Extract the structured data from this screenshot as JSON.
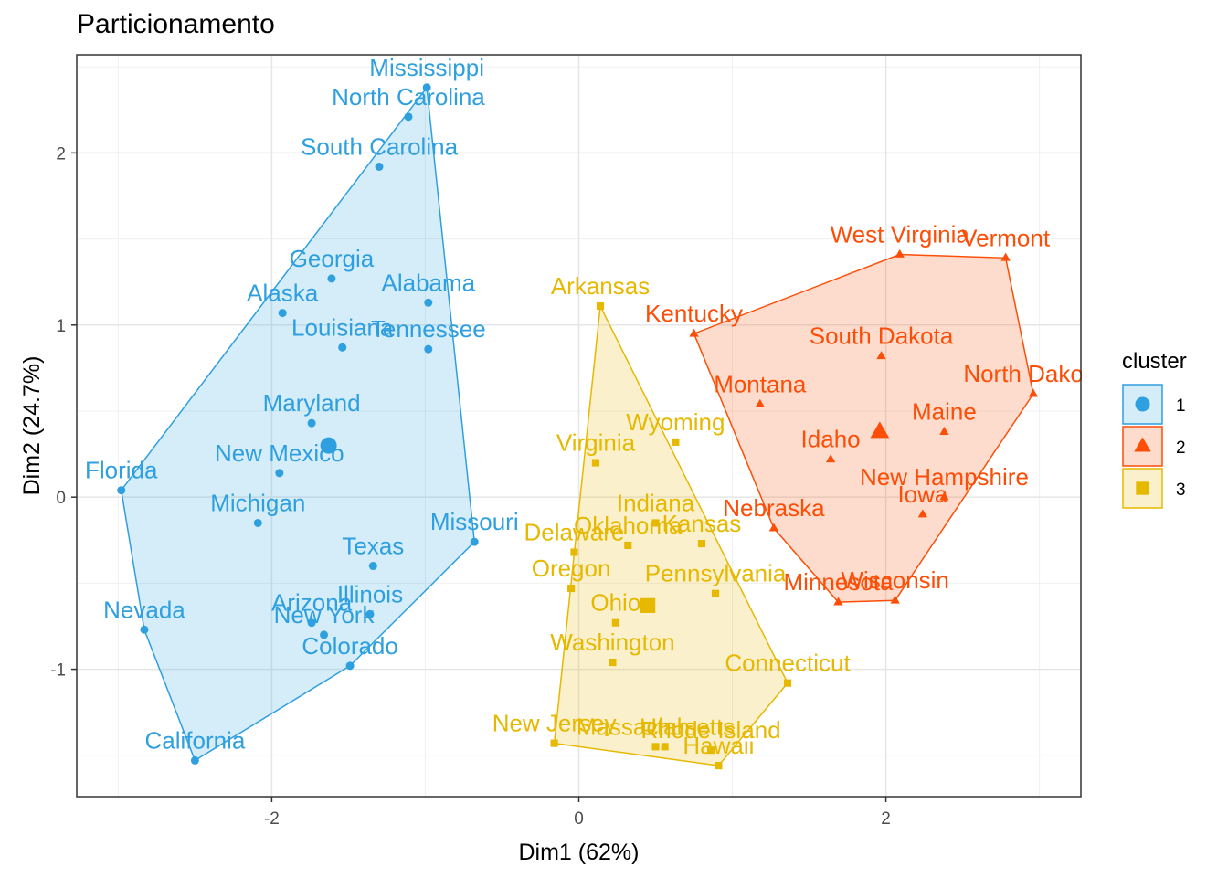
{
  "chart_data": {
    "type": "scatter",
    "title": "Particionamento",
    "xlabel": "Dim1 (62%)",
    "ylabel": "Dim2 (24.7%)",
    "xlim": [
      -3.27,
      3.27
    ],
    "ylim": [
      -1.74,
      2.57
    ],
    "x_ticks": [
      -2,
      0,
      2
    ],
    "y_ticks": [
      -1,
      0,
      1,
      2
    ],
    "x_tick_labels": [
      "-2",
      "0",
      "2"
    ],
    "y_tick_labels": [
      "-1",
      "0",
      "1",
      "2"
    ],
    "grid": true,
    "legend": {
      "title": "cluster",
      "position": "right",
      "entries": [
        "1",
        "2",
        "3"
      ]
    },
    "colors": {
      "1": "#2e9fdf",
      "2": "#fc4e07",
      "3": "#e7b800"
    },
    "series": [
      {
        "name": "1",
        "hull": [
          "Mississippi",
          "Missouri",
          "Colorado",
          "California",
          "Nevada",
          "Florida"
        ],
        "centroid": [
          -1.63,
          0.3
        ],
        "points": [
          {
            "label": "Mississippi",
            "x": -0.99,
            "y": 2.38
          },
          {
            "label": "North Carolina",
            "x": -1.11,
            "y": 2.21
          },
          {
            "label": "South Carolina",
            "x": -1.3,
            "y": 1.92
          },
          {
            "label": "Georgia",
            "x": -1.61,
            "y": 1.27
          },
          {
            "label": "Alaska",
            "x": -1.93,
            "y": 1.07
          },
          {
            "label": "Alabama",
            "x": -0.98,
            "y": 1.13
          },
          {
            "label": "Louisiana",
            "x": -1.54,
            "y": 0.87
          },
          {
            "label": "Tennessee",
            "x": -0.98,
            "y": 0.86
          },
          {
            "label": "Maryland",
            "x": -1.74,
            "y": 0.43
          },
          {
            "label": "New Mexico",
            "x": -1.95,
            "y": 0.14
          },
          {
            "label": "Florida",
            "x": -2.98,
            "y": 0.04
          },
          {
            "label": "Michigan",
            "x": -2.09,
            "y": -0.15
          },
          {
            "label": "Missouri",
            "x": -0.68,
            "y": -0.26
          },
          {
            "label": "Texas",
            "x": -1.34,
            "y": -0.4
          },
          {
            "label": "Illinois",
            "x": -1.36,
            "y": -0.68
          },
          {
            "label": "Arizona",
            "x": -1.74,
            "y": -0.73
          },
          {
            "label": "New York",
            "x": -1.66,
            "y": -0.8
          },
          {
            "label": "Colorado",
            "x": -1.49,
            "y": -0.98
          },
          {
            "label": "Nevada",
            "x": -2.83,
            "y": -0.77
          },
          {
            "label": "California",
            "x": -2.5,
            "y": -1.53
          }
        ]
      },
      {
        "name": "2",
        "hull": [
          "West Virginia",
          "Vermont",
          "North Dakota",
          "Wisconsin",
          "Minnesota",
          "Nebraska",
          "Kentucky"
        ],
        "centroid": [
          1.96,
          0.38
        ],
        "points": [
          {
            "label": "West Virginia",
            "x": 2.09,
            "y": 1.41
          },
          {
            "label": "Vermont",
            "x": 2.78,
            "y": 1.39
          },
          {
            "label": "Kentucky",
            "x": 0.75,
            "y": 0.95
          },
          {
            "label": "South Dakota",
            "x": 1.97,
            "y": 0.82
          },
          {
            "label": "North Dakota",
            "x": 2.96,
            "y": 0.6
          },
          {
            "label": "Montana",
            "x": 1.18,
            "y": 0.54
          },
          {
            "label": "Maine",
            "x": 2.38,
            "y": 0.38
          },
          {
            "label": "Idaho",
            "x": 1.64,
            "y": 0.22
          },
          {
            "label": "New Hampshire",
            "x": 2.38,
            "y": 0.0
          },
          {
            "label": "Iowa",
            "x": 2.24,
            "y": -0.1
          },
          {
            "label": "Nebraska",
            "x": 1.27,
            "y": -0.18
          },
          {
            "label": "Minnesota",
            "x": 1.69,
            "y": -0.61
          },
          {
            "label": "Wisconsin",
            "x": 2.06,
            "y": -0.6
          }
        ]
      },
      {
        "name": "3",
        "hull": [
          "Arkansas",
          "Connecticut",
          "Hawaii",
          "New Jersey"
        ],
        "centroid": [
          0.45,
          -0.63
        ],
        "points": [
          {
            "label": "Arkansas",
            "x": 0.14,
            "y": 1.11
          },
          {
            "label": "Wyoming",
            "x": 0.63,
            "y": 0.32
          },
          {
            "label": "Virginia",
            "x": 0.11,
            "y": 0.2
          },
          {
            "label": "Indiana",
            "x": 0.5,
            "y": -0.15
          },
          {
            "label": "Kansas",
            "x": 0.8,
            "y": -0.27
          },
          {
            "label": "Oklahoma",
            "x": 0.32,
            "y": -0.28
          },
          {
            "label": "Delaware",
            "x": -0.03,
            "y": -0.32
          },
          {
            "label": "Oregon",
            "x": -0.05,
            "y": -0.53
          },
          {
            "label": "Pennsylvania",
            "x": 0.89,
            "y": -0.56
          },
          {
            "label": "Ohio",
            "x": 0.24,
            "y": -0.73
          },
          {
            "label": "Washington",
            "x": 0.22,
            "y": -0.96
          },
          {
            "label": "Connecticut",
            "x": 1.36,
            "y": -1.08
          },
          {
            "label": "New Jersey",
            "x": -0.16,
            "y": -1.43
          },
          {
            "label": "Massachusetts",
            "x": 0.5,
            "y": -1.45
          },
          {
            "label": "Utah",
            "x": 0.56,
            "y": -1.45
          },
          {
            "label": "Rhode Island",
            "x": 0.86,
            "y": -1.47
          },
          {
            "label": "Hawaii",
            "x": 0.91,
            "y": -1.56
          }
        ]
      }
    ]
  }
}
